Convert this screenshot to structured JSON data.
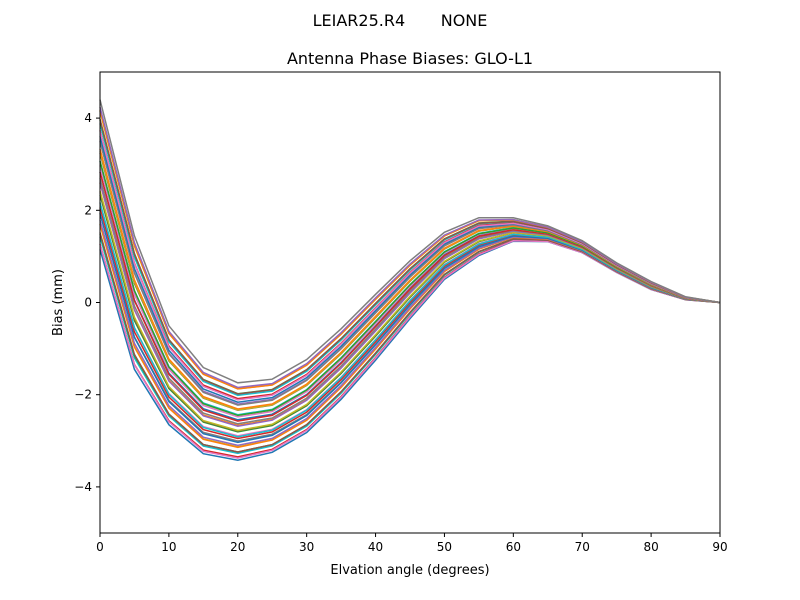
{
  "chart_data": {
    "type": "line",
    "suptitle": "LEIAR25.R4       NONE",
    "title": "Antenna Phase Biases: GLO-L1",
    "xlabel": "Elvation angle (degrees)",
    "ylabel": "Bias (mm)",
    "xlim": [
      0,
      90
    ],
    "ylim": [
      -5,
      5
    ],
    "xticks": [
      0,
      10,
      20,
      30,
      40,
      50,
      60,
      70,
      80,
      90
    ],
    "yticks": [
      -4,
      -2,
      0,
      2,
      4
    ],
    "x": [
      0,
      5,
      10,
      15,
      20,
      25,
      30,
      35,
      40,
      45,
      50,
      55,
      60,
      65,
      70,
      75,
      80,
      85,
      90
    ],
    "envelope_upper": [
      4.35,
      1.4,
      -0.55,
      -1.45,
      -1.78,
      -1.7,
      -1.27,
      -0.6,
      0.15,
      0.88,
      1.5,
      1.82,
      1.82,
      1.65,
      1.33,
      0.85,
      0.45,
      0.12,
      0.0
    ],
    "envelope_lower": [
      1.15,
      -1.45,
      -2.65,
      -3.28,
      -3.42,
      -3.25,
      -2.82,
      -2.1,
      -1.25,
      -0.35,
      0.5,
      1.02,
      1.33,
      1.32,
      1.08,
      0.65,
      0.28,
      0.06,
      0.0
    ],
    "series_count": 40,
    "colors": [
      "#1f77b4",
      "#ff7f0e",
      "#2ca02c",
      "#d62728",
      "#9467bd",
      "#8c564b",
      "#e377c2",
      "#7f7f7f",
      "#bcbd22",
      "#17becf"
    ]
  }
}
